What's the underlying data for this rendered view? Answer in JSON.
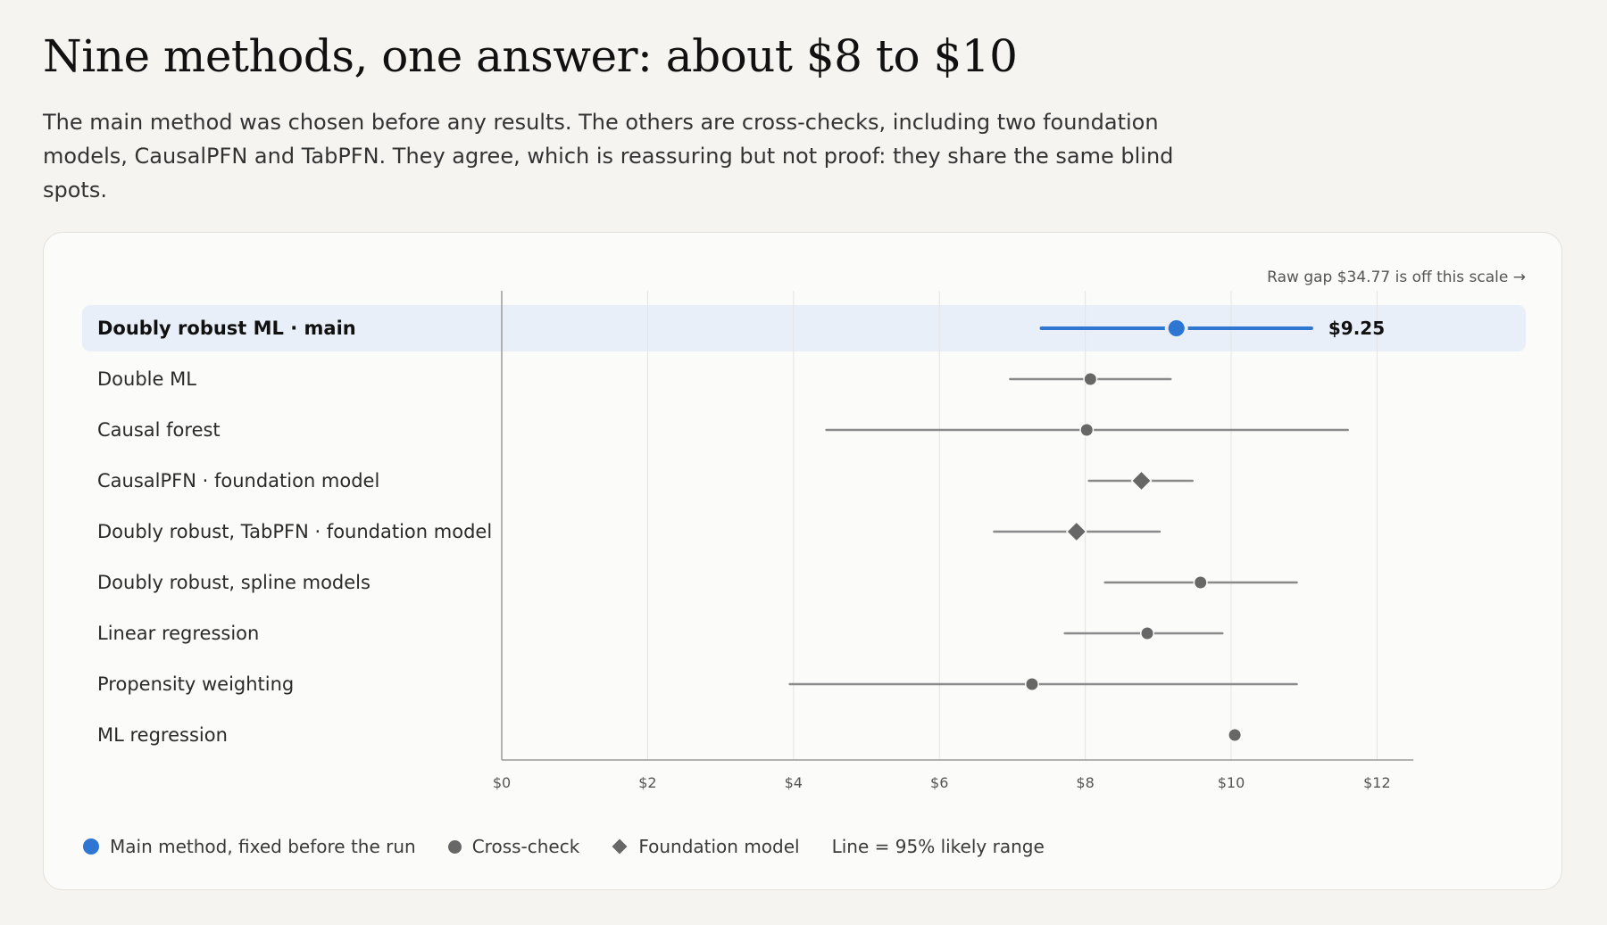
{
  "page": {
    "title": "Nine methods, one answer: about $8 to $10",
    "subtitle": "The main method was chosen before any results. The others are cross-checks, including two foundation models, CausalPFN and TabPFN. They agree, which is reassuring but not proof: they share the same blind spots."
  },
  "chart_data": {
    "type": "scatter",
    "subtype": "forest-plot",
    "annotation": "Raw gap $34.77 is off this scale →",
    "xlim": [
      0,
      12.5
    ],
    "x_ticks": [
      0,
      2,
      4,
      6,
      8,
      10,
      12
    ],
    "x_tick_labels": [
      "$0",
      "$2",
      "$4",
      "$6",
      "$8",
      "$10",
      "$12"
    ],
    "grid": true,
    "colors": {
      "main": "#2f76d2",
      "other": "#676767",
      "range_line": "#8a8a8a",
      "highlight_row": "#e9eff8"
    },
    "rows": [
      {
        "label": "Doubly robust ML · main",
        "estimate": 9.25,
        "low": 7.4,
        "high": 11.1,
        "marker": "main",
        "value_label": "$9.25",
        "highlight": true
      },
      {
        "label": "Double ML",
        "estimate": 8.07,
        "low": 6.97,
        "high": 9.17,
        "marker": "cross-check"
      },
      {
        "label": "Causal forest",
        "estimate": 8.02,
        "low": 4.45,
        "high": 11.6,
        "marker": "cross-check"
      },
      {
        "label": "CausalPFN · foundation model",
        "estimate": 8.77,
        "low": 8.05,
        "high": 9.47,
        "marker": "foundation"
      },
      {
        "label": "Doubly robust, TabPFN · foundation model",
        "estimate": 7.88,
        "low": 6.75,
        "high": 9.02,
        "marker": "foundation"
      },
      {
        "label": "Doubly robust, spline models",
        "estimate": 9.58,
        "low": 8.27,
        "high": 10.9,
        "marker": "cross-check"
      },
      {
        "label": "Linear regression",
        "estimate": 8.85,
        "low": 7.72,
        "high": 9.88,
        "marker": "cross-check"
      },
      {
        "label": "Propensity weighting",
        "estimate": 7.27,
        "low": 3.95,
        "high": 10.9,
        "marker": "cross-check"
      },
      {
        "label": "ML regression",
        "estimate": 10.05,
        "low": null,
        "high": null,
        "marker": "cross-check"
      }
    ],
    "legend": [
      {
        "marker": "main",
        "label": "Main method, fixed before the run"
      },
      {
        "marker": "cross-check",
        "label": "Cross-check"
      },
      {
        "marker": "foundation",
        "label": "Foundation model"
      },
      {
        "marker": "none",
        "label": "Line = 95% likely range"
      }
    ]
  }
}
